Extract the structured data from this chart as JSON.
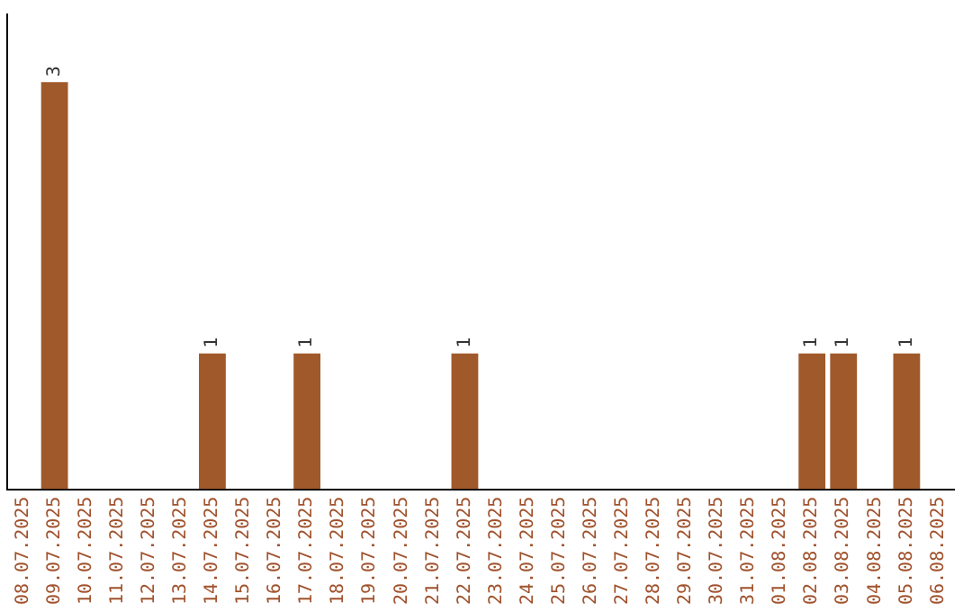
{
  "chart_data": {
    "type": "bar",
    "categories": [
      "08.07.2025",
      "09.07.2025",
      "10.07.2025",
      "11.07.2025",
      "12.07.2025",
      "13.07.2025",
      "14.07.2025",
      "15.07.2025",
      "16.07.2025",
      "17.07.2025",
      "18.07.2025",
      "19.07.2025",
      "20.07.2025",
      "21.07.2025",
      "22.07.2025",
      "23.07.2025",
      "24.07.2025",
      "25.07.2025",
      "26.07.2025",
      "27.07.2025",
      "28.07.2025",
      "29.07.2025",
      "30.07.2025",
      "31.07.2025",
      "01.08.2025",
      "02.08.2025",
      "03.08.2025",
      "04.08.2025",
      "05.08.2025",
      "06.08.2025"
    ],
    "values": [
      0,
      3,
      0,
      0,
      0,
      0,
      1,
      0,
      0,
      1,
      0,
      0,
      0,
      0,
      1,
      0,
      0,
      0,
      0,
      0,
      0,
      0,
      0,
      0,
      0,
      1,
      1,
      0,
      1,
      0
    ],
    "value_labels": [
      null,
      "3",
      null,
      null,
      null,
      null,
      "1",
      null,
      null,
      "1",
      null,
      null,
      null,
      null,
      "1",
      null,
      null,
      null,
      null,
      null,
      null,
      null,
      null,
      null,
      null,
      "1",
      "1",
      null,
      "1",
      null
    ],
    "color": "#a0592a",
    "tick_labels": "x",
    "grid": false,
    "legend": false
  }
}
